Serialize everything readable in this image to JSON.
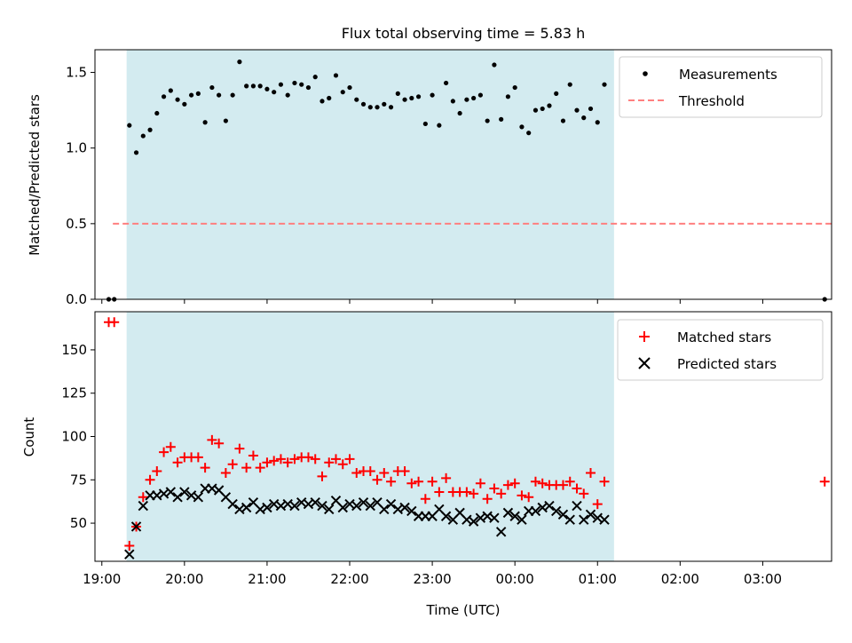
{
  "figure": {
    "title": "Flux total observing time = 5.83 h",
    "xlabel": "Time (UTC)"
  },
  "chart_data": [
    {
      "type": "scatter",
      "title": "Flux total observing time = 5.83 h",
      "xlabel": "",
      "ylabel": "Matched/Predicted stars",
      "xlim": [
        "18:55",
        "03:50"
      ],
      "ylim": [
        0,
        1.65
      ],
      "yticks": [
        0.0,
        0.5,
        1.0,
        1.5
      ],
      "ytick_labels": [
        "0.0",
        "0.5",
        "1.0",
        "1.5"
      ],
      "xticks": [
        "19:00",
        "20:00",
        "21:00",
        "22:00",
        "23:00",
        "00:00",
        "01:00",
        "02:00",
        "03:00"
      ],
      "shaded_span": [
        "19:18",
        "01:12"
      ],
      "shade_color": "#d3ebf0",
      "legend": {
        "placement": "top-right",
        "entries": [
          "Measurements",
          "Threshold"
        ]
      },
      "threshold": {
        "name": "Threshold",
        "value": 0.5,
        "x_range": [
          "19:08",
          "03:50"
        ],
        "color": "#ff7f7f"
      },
      "series": [
        {
          "name": "Measurements",
          "color": "#000000",
          "x": [
            "19:05",
            "19:09",
            "19:20",
            "19:25",
            "19:30",
            "19:35",
            "19:40",
            "19:45",
            "19:50",
            "19:55",
            "20:00",
            "20:05",
            "20:10",
            "20:15",
            "20:20",
            "20:25",
            "20:30",
            "20:35",
            "20:40",
            "20:45",
            "20:50",
            "20:55",
            "21:00",
            "21:05",
            "21:10",
            "21:15",
            "21:20",
            "21:25",
            "21:30",
            "21:35",
            "21:40",
            "21:45",
            "21:50",
            "21:55",
            "22:00",
            "22:05",
            "22:10",
            "22:15",
            "22:20",
            "22:25",
            "22:30",
            "22:35",
            "22:40",
            "22:45",
            "22:50",
            "22:55",
            "23:00",
            "23:05",
            "23:10",
            "23:15",
            "23:20",
            "23:25",
            "23:30",
            "23:35",
            "23:40",
            "23:45",
            "23:50",
            "23:55",
            "00:00",
            "00:05",
            "00:10",
            "00:15",
            "00:20",
            "00:25",
            "00:30",
            "00:35",
            "00:40",
            "00:45",
            "00:50",
            "00:55",
            "01:00",
            "01:05",
            "03:45"
          ],
          "y": [
            0.0,
            0.0,
            1.15,
            0.97,
            1.08,
            1.12,
            1.23,
            1.34,
            1.38,
            1.32,
            1.29,
            1.35,
            1.36,
            1.17,
            1.4,
            1.35,
            1.18,
            1.35,
            1.57,
            1.41,
            1.41,
            1.41,
            1.39,
            1.37,
            1.42,
            1.35,
            1.43,
            1.42,
            1.4,
            1.47,
            1.31,
            1.33,
            1.48,
            1.37,
            1.4,
            1.32,
            1.29,
            1.27,
            1.27,
            1.29,
            1.27,
            1.36,
            1.32,
            1.33,
            1.34,
            1.16,
            1.35,
            1.15,
            1.43,
            1.31,
            1.23,
            1.32,
            1.33,
            1.35,
            1.18,
            1.55,
            1.19,
            1.34,
            1.4,
            1.14,
            1.1,
            1.25,
            1.26,
            1.28,
            1.36,
            1.18,
            1.42,
            1.25,
            1.2,
            1.26,
            1.17,
            1.42,
            0.0
          ]
        }
      ]
    },
    {
      "type": "scatter",
      "title": "",
      "xlabel": "Time (UTC)",
      "ylabel": "Count",
      "xlim": [
        "18:55",
        "03:50"
      ],
      "ylim": [
        28,
        172
      ],
      "yticks": [
        50,
        75,
        100,
        125,
        150
      ],
      "ytick_labels": [
        "50",
        "75",
        "100",
        "125",
        "150"
      ],
      "xticks": [
        "19:00",
        "20:00",
        "21:00",
        "22:00",
        "23:00",
        "00:00",
        "01:00",
        "02:00",
        "03:00"
      ],
      "xtick_labels": [
        "19:00",
        "20:00",
        "21:00",
        "22:00",
        "23:00",
        "00:00",
        "01:00",
        "02:00",
        "03:00"
      ],
      "shaded_span": [
        "19:18",
        "01:12"
      ],
      "shade_color": "#d3ebf0",
      "legend": {
        "placement": "top-right",
        "entries": [
          "Matched stars",
          "Predicted stars"
        ]
      },
      "series": [
        {
          "name": "Matched stars",
          "marker": "plus",
          "color": "#ff0000",
          "x": [
            "19:05",
            "19:09",
            "19:20",
            "19:25",
            "19:30",
            "19:35",
            "19:40",
            "19:45",
            "19:50",
            "19:55",
            "20:00",
            "20:05",
            "20:10",
            "20:15",
            "20:20",
            "20:25",
            "20:30",
            "20:35",
            "20:40",
            "20:45",
            "20:50",
            "20:55",
            "21:00",
            "21:05",
            "21:10",
            "21:15",
            "21:20",
            "21:25",
            "21:30",
            "21:35",
            "21:40",
            "21:45",
            "21:50",
            "21:55",
            "22:00",
            "22:05",
            "22:10",
            "22:15",
            "22:20",
            "22:25",
            "22:30",
            "22:35",
            "22:40",
            "22:45",
            "22:50",
            "22:55",
            "23:00",
            "23:05",
            "23:10",
            "23:15",
            "23:20",
            "23:25",
            "23:30",
            "23:35",
            "23:40",
            "23:45",
            "23:50",
            "23:55",
            "00:00",
            "00:05",
            "00:10",
            "00:15",
            "00:20",
            "00:25",
            "00:30",
            "00:35",
            "00:40",
            "00:45",
            "00:50",
            "00:55",
            "01:00",
            "01:05",
            "03:45"
          ],
          "y": [
            166,
            166,
            37,
            48,
            65,
            75,
            80,
            91,
            94,
            85,
            88,
            88,
            88,
            82,
            98,
            96,
            79,
            84,
            93,
            82,
            89,
            82,
            85,
            86,
            87,
            85,
            87,
            88,
            88,
            87,
            77,
            85,
            87,
            84,
            87,
            79,
            80,
            80,
            75,
            79,
            74,
            80,
            80,
            73,
            74,
            64,
            74,
            68,
            76,
            68,
            68,
            68,
            67,
            73,
            64,
            70,
            67,
            72,
            73,
            66,
            65,
            74,
            73,
            72,
            72,
            72,
            74,
            70,
            67,
            79,
            61,
            74,
            74
          ]
        },
        {
          "name": "Predicted stars",
          "marker": "x",
          "color": "#000000",
          "x": [
            "19:20",
            "19:25",
            "19:30",
            "19:35",
            "19:40",
            "19:45",
            "19:50",
            "19:55",
            "20:00",
            "20:05",
            "20:10",
            "20:15",
            "20:20",
            "20:25",
            "20:30",
            "20:35",
            "20:40",
            "20:45",
            "20:50",
            "20:55",
            "21:00",
            "21:05",
            "21:10",
            "21:15",
            "21:20",
            "21:25",
            "21:30",
            "21:35",
            "21:40",
            "21:45",
            "21:50",
            "21:55",
            "22:00",
            "22:05",
            "22:10",
            "22:15",
            "22:20",
            "22:25",
            "22:30",
            "22:35",
            "22:40",
            "22:45",
            "22:50",
            "22:55",
            "23:00",
            "23:05",
            "23:10",
            "23:15",
            "23:20",
            "23:25",
            "23:30",
            "23:35",
            "23:40",
            "23:45",
            "23:50",
            "23:55",
            "00:00",
            "00:05",
            "00:10",
            "00:15",
            "00:20",
            "00:25",
            "00:30",
            "00:35",
            "00:40",
            "00:45",
            "00:50",
            "00:55",
            "01:00",
            "01:05"
          ],
          "y": [
            32,
            48,
            60,
            66,
            66,
            67,
            68,
            65,
            68,
            66,
            65,
            70,
            70,
            69,
            65,
            61,
            58,
            59,
            62,
            58,
            59,
            61,
            60,
            61,
            60,
            62,
            61,
            62,
            60,
            58,
            63,
            59,
            61,
            60,
            62,
            60,
            62,
            58,
            61,
            58,
            59,
            57,
            54,
            54,
            54,
            58,
            54,
            52,
            56,
            52,
            51,
            53,
            54,
            53,
            45,
            56,
            54,
            52,
            57,
            57,
            59,
            60,
            57,
            55,
            52,
            60,
            52,
            55,
            53,
            52
          ]
        }
      ]
    }
  ]
}
